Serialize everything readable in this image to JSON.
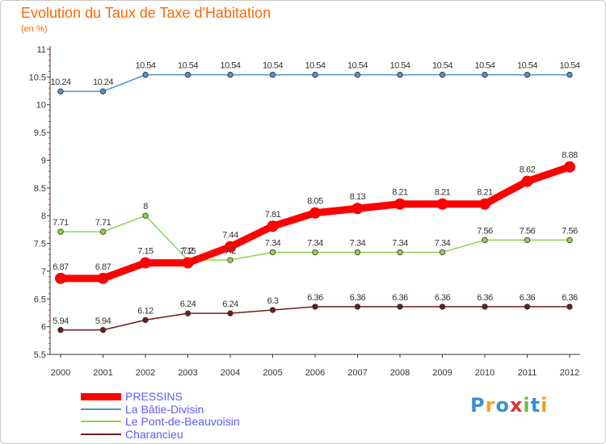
{
  "title": "Evolution du Taux de Taxe d'Habitation",
  "subtitle": "(en %)",
  "logo": {
    "text": "Proxiti",
    "letters": [
      {
        "ch": "P",
        "color": "#3b8ed8"
      },
      {
        "ch": "r",
        "color": "#f0a020"
      },
      {
        "ch": "o",
        "color": "#3b8ed8"
      },
      {
        "ch": "x",
        "color": "#e03030"
      },
      {
        "ch": "i",
        "color": "#6cbf3a"
      },
      {
        "ch": "t",
        "color": "#3b8ed8"
      },
      {
        "ch": "i",
        "color": "#f0a020"
      }
    ]
  },
  "chart_data": {
    "type": "line",
    "title": "Evolution du Taux de Taxe d'Habitation",
    "subtitle": "(en %)",
    "x": [
      "2000",
      "2001",
      "2002",
      "2003",
      "2004",
      "2005",
      "2006",
      "2007",
      "2008",
      "2009",
      "2010",
      "2011",
      "2012"
    ],
    "y_ticks": [
      "5.5",
      "6",
      "6.5",
      "7",
      "7.5",
      "8",
      "8.5",
      "9",
      "9.5",
      "10",
      "10.5",
      "11"
    ],
    "ylim": [
      5.5,
      11
    ],
    "grid": false,
    "legend_position": "bottom-left",
    "series": [
      {
        "name": "PRESSINS",
        "color": "#ff0000",
        "emphasis": true,
        "values": [
          6.87,
          6.87,
          7.15,
          7.15,
          7.44,
          7.81,
          8.05,
          8.13,
          8.21,
          8.21,
          8.21,
          8.62,
          8.88
        ],
        "labels": [
          "6.87",
          "6.87",
          "7.15",
          "7.15",
          "7.44",
          "7.81",
          "8.05",
          "8.13",
          "8.21",
          "8.21",
          "8.21",
          "8.62",
          "8.88"
        ]
      },
      {
        "name": "La Bâtie-Divisin",
        "color": "#4f92d2",
        "emphasis": false,
        "values": [
          10.24,
          10.24,
          10.54,
          10.54,
          10.54,
          10.54,
          10.54,
          10.54,
          10.54,
          10.54,
          10.54,
          10.54,
          10.54
        ],
        "labels": [
          "10.24",
          "10.24",
          "10.54",
          "10.54",
          "10.54",
          "10.54",
          "10.54",
          "10.54",
          "10.54",
          "10.54",
          "10.54",
          "10.54",
          "10.54"
        ]
      },
      {
        "name": "Le Pont-de-Beauvoisin",
        "color": "#8fd34f",
        "emphasis": false,
        "values": [
          7.71,
          7.71,
          8,
          7.2,
          7.2,
          7.34,
          7.34,
          7.34,
          7.34,
          7.34,
          7.56,
          7.56,
          7.56
        ],
        "labels": [
          "7.71",
          "7.71",
          "8",
          "7.2",
          "7.2",
          "7.34",
          "7.34",
          "7.34",
          "7.34",
          "7.34",
          "7.56",
          "7.56",
          "7.56"
        ]
      },
      {
        "name": "Charancieu",
        "color": "#6e1c1c",
        "emphasis": false,
        "values": [
          5.94,
          5.94,
          6.12,
          6.24,
          6.24,
          6.3,
          6.36,
          6.36,
          6.36,
          6.36,
          6.36,
          6.36,
          6.36
        ],
        "labels": [
          "5.94",
          "5.94",
          "6.12",
          "6.24",
          "6.24",
          "6.3",
          "6.36",
          "6.36",
          "6.36",
          "6.36",
          "6.36",
          "6.36",
          "6.36"
        ]
      }
    ]
  }
}
